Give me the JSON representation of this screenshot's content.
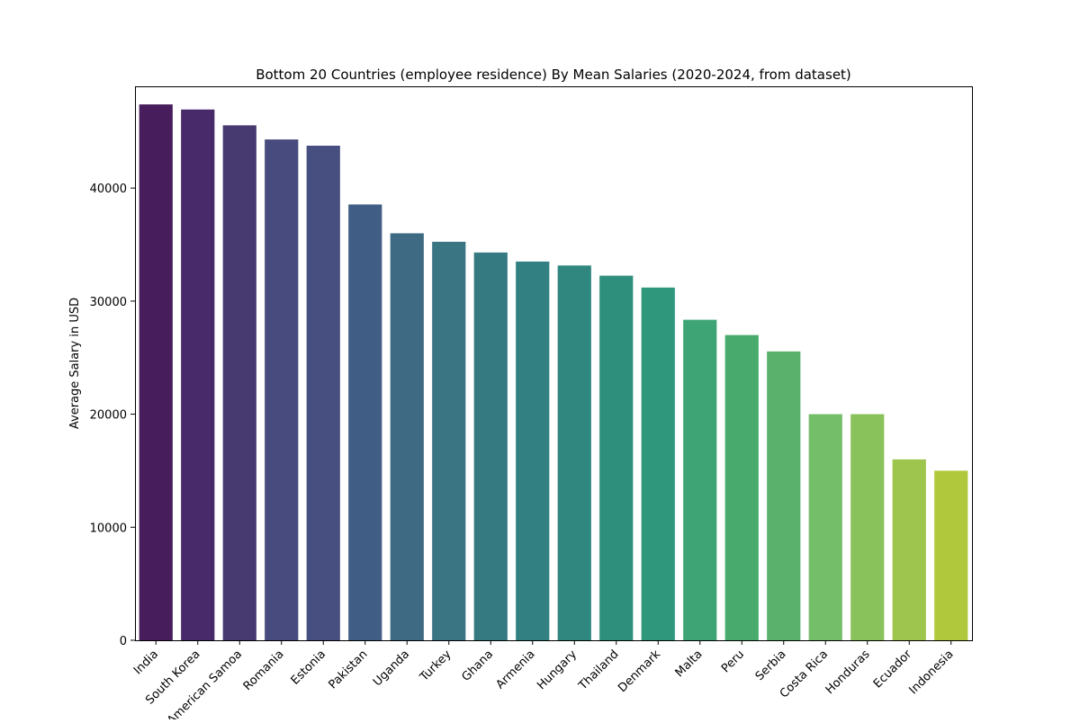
{
  "chart_data": {
    "type": "bar",
    "title": "Bottom 20 Countries (employee residence) By Mean Salaries (2020-2024, from dataset)",
    "xlabel": "",
    "ylabel": "Average Salary in USD",
    "ylim": [
      0,
      49000
    ],
    "yticks": [
      0,
      10000,
      20000,
      30000,
      40000
    ],
    "ytick_labels": [
      "0",
      "10000",
      "20000",
      "30000",
      "40000"
    ],
    "grid": false,
    "legend": "none",
    "colormap": "viridis",
    "categories": [
      "India",
      "South Korea",
      "American Samoa",
      "Romania",
      "Estonia",
      "Pakistan",
      "Uganda",
      "Turkey",
      "Ghana",
      "Armenia",
      "Hungary",
      "Thailand",
      "Denmark",
      "Malta",
      "Peru",
      "Serbia",
      "Costa Rica",
      "Honduras",
      "Ecuador",
      "Indonesia"
    ],
    "values": [
      47400,
      46950,
      45550,
      44300,
      43750,
      38550,
      36000,
      35250,
      34300,
      33500,
      33150,
      32250,
      31200,
      28350,
      27000,
      25550,
      20000,
      20000,
      16000,
      15000
    ],
    "colors": [
      "#471d5b",
      "#482a6b",
      "#473a70",
      "#474b7d",
      "#464f7f",
      "#405e85",
      "#3e6a84",
      "#3a7584",
      "#357a81",
      "#328082",
      "#2f877f",
      "#2e8f7d",
      "#2f977c",
      "#3ea475",
      "#48ab6d",
      "#59b16b",
      "#74bd69",
      "#89c25a",
      "#9ec64e",
      "#b0c93c"
    ]
  }
}
